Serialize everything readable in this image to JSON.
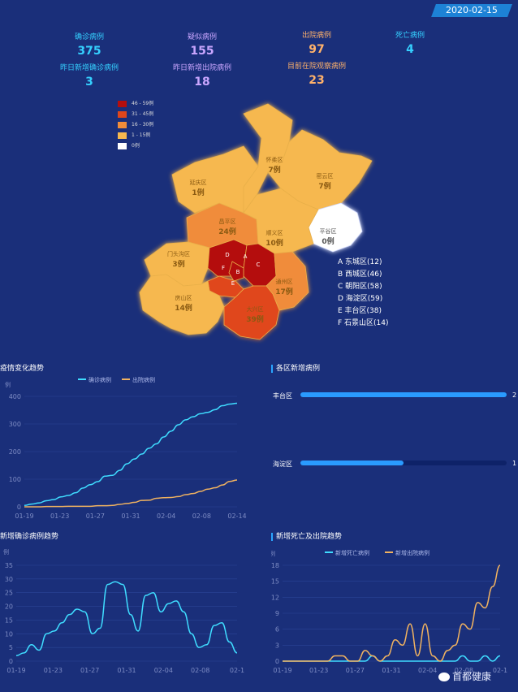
{
  "date": "2020-02-15",
  "stats": [
    {
      "label": "确诊病例",
      "value": "375",
      "color": "#35d0ff"
    },
    {
      "label": "疑似病例",
      "value": "155",
      "color": "#c9a6ff"
    },
    {
      "label": "出院病例",
      "value": "97",
      "color": "#ffb26b"
    },
    {
      "label": "死亡病例",
      "value": "4",
      "color": "#35d0ff"
    },
    {
      "label": "昨日新增确诊病例",
      "value": "3",
      "color": "#35d0ff"
    },
    {
      "label": "昨日新增出院病例",
      "value": "18",
      "color": "#c9a6ff"
    },
    {
      "label": "目前在院观察病例",
      "value": "23",
      "color": "#ffb26b"
    }
  ],
  "legend": [
    {
      "label": "46 - 59例",
      "color": "#b40e0e"
    },
    {
      "label": "31 - 45例",
      "color": "#e0461b"
    },
    {
      "label": "16 - 30例",
      "color": "#f08c3a"
    },
    {
      "label": "1 - 15例",
      "color": "#f6b84f"
    },
    {
      "label": "0例",
      "color": "#ffffff"
    }
  ],
  "districts": [
    {
      "name": "延庆区",
      "count": "1例"
    },
    {
      "name": "怀柔区",
      "count": "7例"
    },
    {
      "name": "密云区",
      "count": "7例"
    },
    {
      "name": "昌平区",
      "count": "24例"
    },
    {
      "name": "顺义区",
      "count": "10例"
    },
    {
      "name": "平谷区",
      "count": "0例"
    },
    {
      "name": "门头沟区",
      "count": "3例"
    },
    {
      "name": "房山区",
      "count": "14例"
    },
    {
      "name": "大兴区",
      "count": "39例"
    },
    {
      "name": "通州区",
      "count": "17例"
    }
  ],
  "map_letters": [
    "A",
    "B",
    "C",
    "D",
    "E",
    "F"
  ],
  "abbr_list": [
    "A 东城区(12)",
    "B 西城区(46)",
    "C 朝阳区(58)",
    "D 海淀区(59)",
    "E 丰台区(38)",
    "F 石景山区(14)"
  ],
  "panel1": {
    "title": "疫情变化趋势",
    "y_unit": "例",
    "legend": [
      "确诊病例",
      "出院病例"
    ]
  },
  "panel2": {
    "title": "各区新增病例"
  },
  "panel3": {
    "title": "新增确诊病例趋势",
    "y_unit": "例"
  },
  "panel4": {
    "title": "新增死亡及出院趋势",
    "y_unit": "例",
    "legend": [
      "新增死亡病例",
      "新增出院病例"
    ]
  },
  "watermark": "首都健康",
  "chart_data": [
    {
      "type": "line",
      "title": "疫情变化趋势",
      "ylabel": "例",
      "x_ticks": [
        "01-19",
        "01-23",
        "01-27",
        "01-31",
        "02-04",
        "02-08",
        "02-14"
      ],
      "ylim": [
        0,
        400
      ],
      "y_ticks": [
        "0",
        "100",
        "200",
        "300",
        "400"
      ],
      "series": [
        {
          "name": "确诊病例",
          "color": "#3fdcff",
          "values": [
            5,
            10,
            14,
            22,
            26,
            36,
            41,
            51,
            68,
            80,
            91,
            111,
            114,
            132,
            156,
            173,
            191,
            212,
            228,
            253,
            274,
            297,
            315,
            326,
            337,
            342,
            352,
            366,
            372,
            375
          ]
        },
        {
          "name": "出院病例",
          "color": "#f0b260",
          "values": [
            0,
            0,
            0,
            1,
            1,
            1,
            2,
            2,
            2,
            2,
            4,
            4,
            5,
            9,
            12,
            16,
            23,
            24,
            31,
            33,
            34,
            37,
            44,
            48,
            56,
            64,
            69,
            79,
            92,
            97
          ]
        }
      ]
    },
    {
      "type": "bar",
      "title": "各区新增病例",
      "categories": [
        "丰台区",
        "海淀区"
      ],
      "values": [
        2,
        1
      ]
    },
    {
      "type": "line",
      "title": "新增确诊病例趋势",
      "ylabel": "例",
      "x_ticks": [
        "01-19",
        "01-23",
        "01-27",
        "01-31",
        "02-04",
        "02-08",
        "02-1"
      ],
      "ylim": [
        0,
        35
      ],
      "y_ticks": [
        "0",
        "5",
        "10",
        "15",
        "20",
        "25",
        "30",
        "35"
      ],
      "series": [
        {
          "name": "新增确诊病例",
          "color": "#3fdcff",
          "values": [
            2,
            3,
            6,
            4,
            10,
            11,
            14,
            17,
            19,
            18,
            10,
            12,
            28,
            29,
            28,
            17,
            11,
            24,
            25,
            18,
            21,
            22,
            18,
            10,
            5,
            6,
            13,
            14,
            7,
            3
          ]
        }
      ]
    },
    {
      "type": "line",
      "title": "新增死亡及出院趋势",
      "ylabel": "例",
      "x_ticks": [
        "01-19",
        "01-23",
        "01-27",
        "01-31",
        "02-04",
        "02-08",
        "02-1"
      ],
      "ylim": [
        0,
        18
      ],
      "y_ticks": [
        "0",
        "3",
        "6",
        "9",
        "12",
        "15",
        "18"
      ],
      "series": [
        {
          "name": "新增死亡病例",
          "color": "#3fdcff",
          "values": [
            0,
            0,
            0,
            0,
            0,
            0,
            0,
            0,
            0,
            0,
            0,
            0,
            1,
            0,
            0,
            0,
            0,
            0,
            0,
            0,
            0,
            0,
            0,
            0,
            1,
            0,
            0,
            1,
            0,
            1
          ]
        },
        {
          "name": "新增出院病例",
          "color": "#f0b260",
          "values": [
            0,
            0,
            0,
            0,
            0,
            0,
            0,
            1,
            1,
            0,
            0,
            2,
            1,
            0,
            1,
            4,
            3,
            7,
            1,
            7,
            1,
            0,
            2,
            3,
            7,
            6,
            11,
            10,
            14,
            18
          ]
        }
      ]
    }
  ]
}
